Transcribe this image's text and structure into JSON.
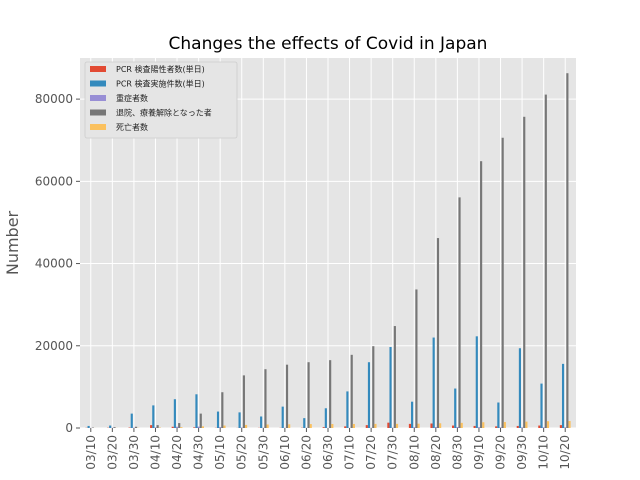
{
  "chart_data": {
    "type": "bar",
    "title": "Changes the effects of Covid in Japan",
    "xlabel": "",
    "ylabel": "Number",
    "ylim": [
      0,
      90000
    ],
    "yticks": [
      0,
      20000,
      40000,
      60000,
      80000
    ],
    "grid": true,
    "legend_position": "top-left",
    "categories": [
      "03/10",
      "03/20",
      "03/30",
      "04/10",
      "04/20",
      "04/30",
      "05/10",
      "05/20",
      "05/30",
      "06/10",
      "06/20",
      "06/30",
      "07/10",
      "07/20",
      "07/30",
      "08/10",
      "08/20",
      "08/30",
      "09/10",
      "09/20",
      "09/30",
      "10/10",
      "10/20"
    ],
    "series": [
      {
        "name": "PCR 検査陽性者数(単日)",
        "color": "#E24A33",
        "values": [
          50,
          60,
          100,
          700,
          300,
          150,
          50,
          30,
          40,
          50,
          60,
          200,
          400,
          700,
          1300,
          1000,
          1100,
          600,
          500,
          400,
          500,
          600,
          700
        ]
      },
      {
        "name": "PCR 検査実施件数(単日)",
        "color": "#348ABD",
        "values": [
          500,
          600,
          3500,
          5500,
          7000,
          8200,
          4000,
          3800,
          2800,
          5200,
          2400,
          4800,
          8900,
          16000,
          19700,
          6400,
          22000,
          9600,
          22300,
          6200,
          19400,
          10800,
          15600
        ]
      },
      {
        "name": "重症者数",
        "color": "#988ED5",
        "values": [
          30,
          50,
          70,
          150,
          300,
          330,
          250,
          120,
          60,
          50,
          40,
          30,
          40,
          60,
          90,
          200,
          250,
          240,
          190,
          160,
          150,
          160,
          170
        ]
      },
      {
        "name": "退院、療養解除となった者",
        "color": "#777777",
        "values": [
          100,
          200,
          300,
          700,
          1200,
          3500,
          8700,
          12800,
          14300,
          15400,
          16000,
          16500,
          17800,
          19900,
          24800,
          33700,
          46200,
          56100,
          64900,
          70600,
          75700,
          81100,
          86300
        ]
      },
      {
        "name": "死亡者数",
        "color": "#FBC15E",
        "values": [
          10,
          20,
          50,
          100,
          200,
          400,
          600,
          750,
          850,
          900,
          950,
          970,
          980,
          1000,
          1010,
          1050,
          1150,
          1250,
          1400,
          1450,
          1550,
          1650,
          1700
        ]
      }
    ]
  }
}
